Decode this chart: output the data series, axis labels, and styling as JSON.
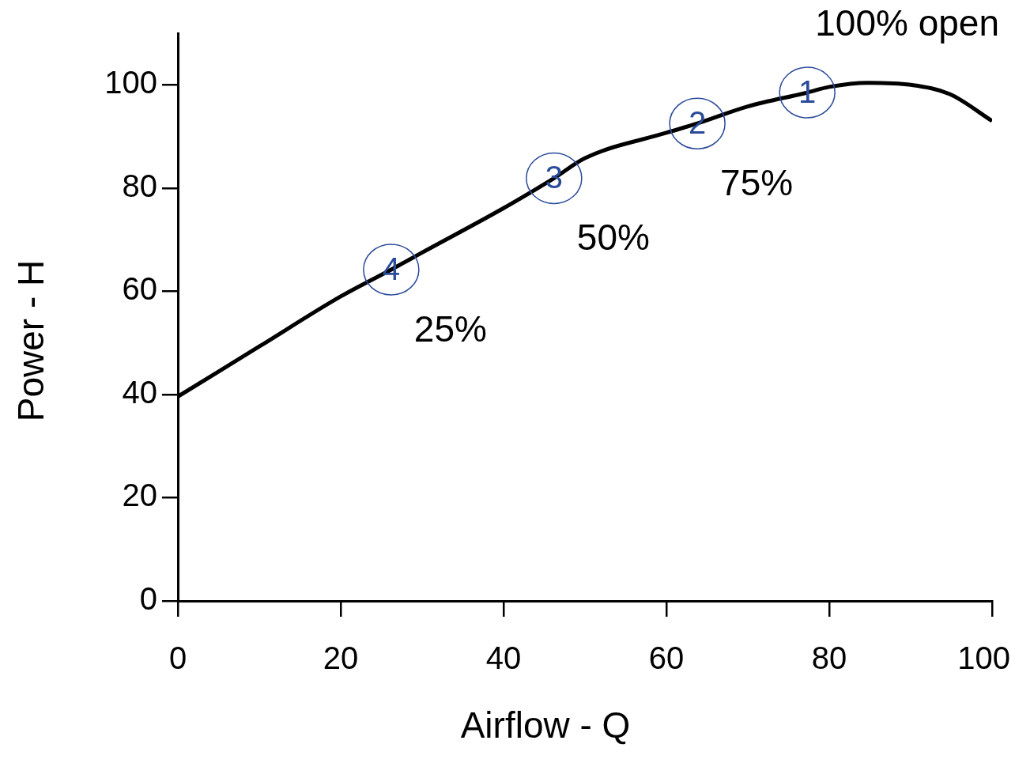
{
  "chart_data": {
    "type": "line",
    "xlabel": "Airflow - Q",
    "ylabel": "Power - H",
    "xlim": [
      0,
      100
    ],
    "xticks": [
      0,
      20,
      40,
      60,
      80,
      100
    ],
    "ylim": [
      0,
      110
    ],
    "yticks": [
      0,
      20,
      40,
      60,
      80,
      100
    ],
    "grid": false,
    "legend": false,
    "marker": "none",
    "series": [
      {
        "color": "#000000",
        "x": [
          0,
          10,
          20,
          26.2,
          30,
          40,
          46.2,
          50,
          60,
          63.8,
          70,
          77.3,
          80,
          84.8,
          90,
          94.8,
          100
        ],
        "values": [
          39.6,
          49.3,
          59,
          64.2,
          67.5,
          76.1,
          81.9,
          85.8,
          90.7,
          92.5,
          95.8,
          98.5,
          99.6,
          100.4,
          100,
          98.2,
          93
        ]
      }
    ],
    "annotations": [
      {
        "text": "4",
        "x": 26.2,
        "y": 64.2
      },
      {
        "text": "3",
        "x": 46.2,
        "y": 81.9
      },
      {
        "text": "2",
        "x": 63.8,
        "y": 92.5
      },
      {
        "text": "1",
        "x": 77.3,
        "y": 98.5
      },
      "25%",
      "50%",
      "75%",
      "100% open"
    ]
  }
}
